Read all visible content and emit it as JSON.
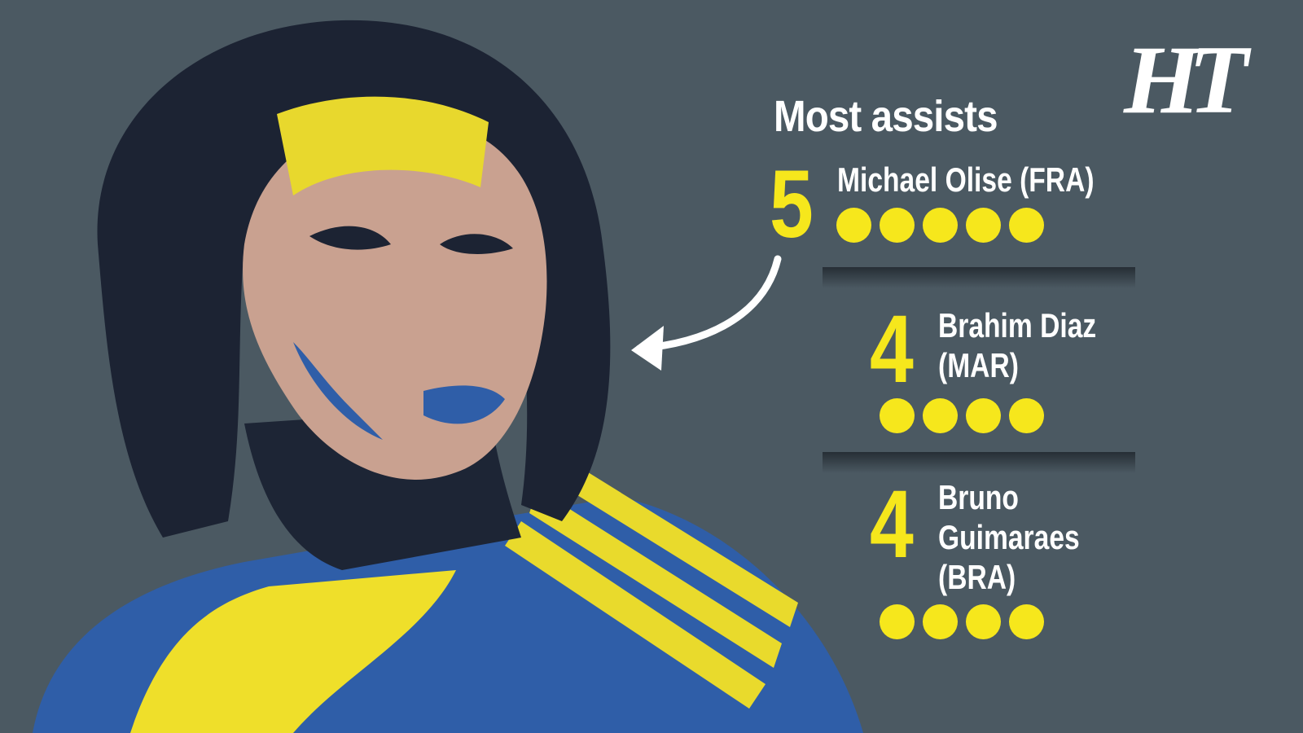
{
  "logo": "HT",
  "title": "Most assists",
  "entries": [
    {
      "value": 5,
      "name": "Michael Olise (FRA)"
    },
    {
      "value": 4,
      "name": "Brahim Diaz (MAR)"
    },
    {
      "value": 4,
      "name": "Bruno Guimaraes (BRA)"
    }
  ]
}
